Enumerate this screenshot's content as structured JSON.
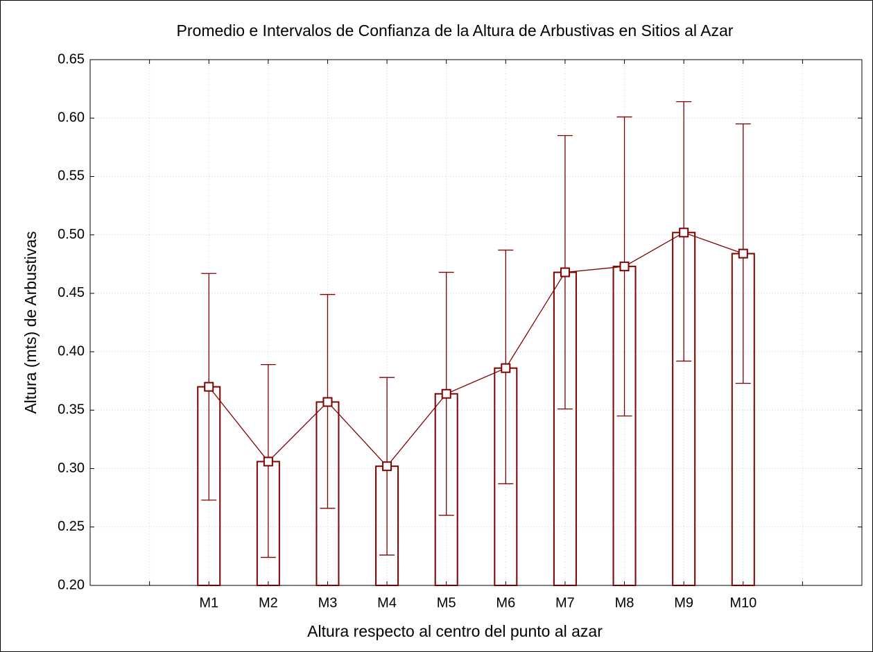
{
  "chart_data": {
    "type": "bar-line-errorbar",
    "title": "Promedio e Intervalos de Confianza de la Altura de Arbustivas en Sitios al Azar",
    "x_label": "Altura respecto al centro del punto al azar",
    "y_label": "Altura (mts) de Arbustivas",
    "categories": [
      null,
      "M1",
      "M2",
      "M3",
      "M4",
      "M5",
      "M6",
      "M7",
      "M8",
      "M9",
      "M10",
      null
    ],
    "series": [
      {
        "color": "#800000",
        "values": [
          null,
          0.37,
          0.306,
          0.357,
          0.302,
          0.364,
          0.386,
          0.468,
          0.473,
          0.502,
          0.484,
          null
        ],
        "lower": [
          null,
          0.273,
          0.224,
          0.266,
          0.226,
          0.26,
          0.287,
          0.351,
          0.345,
          0.392,
          0.373,
          null
        ],
        "upper": [
          null,
          0.467,
          0.389,
          0.449,
          0.378,
          0.468,
          0.487,
          0.585,
          0.601,
          0.614,
          0.595,
          null
        ]
      }
    ],
    "ylim": [
      0.2,
      0.65
    ],
    "yticks": [
      {
        "value": 0.2,
        "label": "0.20"
      },
      {
        "value": 0.25,
        "label": "0.25"
      },
      {
        "value": 0.3,
        "label": "0.30"
      },
      {
        "value": 0.35,
        "label": "0.35"
      },
      {
        "value": 0.4,
        "label": "0.40"
      },
      {
        "value": 0.45,
        "label": "0.45"
      },
      {
        "value": 0.5,
        "label": "0.50"
      },
      {
        "value": 0.55,
        "label": "0.55"
      },
      {
        "value": 0.6,
        "label": "0.60"
      },
      {
        "value": 0.65,
        "label": "0.65"
      }
    ],
    "grid": true
  }
}
